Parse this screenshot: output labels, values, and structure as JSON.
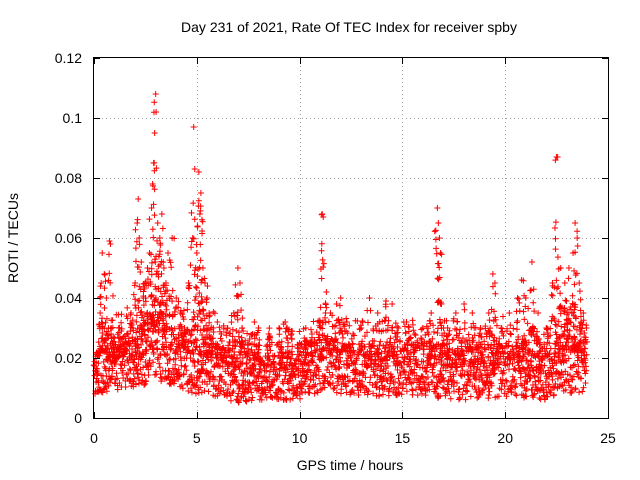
{
  "chart_data": {
    "type": "scatter",
    "title": "Day 231 of 2021, Rate Of TEC Index for receiver spby",
    "xlabel": "GPS time / hours",
    "ylabel": "ROTI / TECUs",
    "xlim": [
      0,
      25
    ],
    "ylim": [
      0,
      0.12
    ],
    "xticks": [
      0,
      5,
      10,
      15,
      20,
      25
    ],
    "xtick_labels": [
      "0",
      "5",
      "10",
      "15",
      "20",
      "25"
    ],
    "yticks": [
      0,
      0.02,
      0.04,
      0.06,
      0.08,
      0.1,
      0.12
    ],
    "ytick_labels": [
      "0",
      "0.02",
      "0.04",
      "0.06",
      "0.08",
      "0.1",
      "0.12"
    ],
    "grid": true,
    "marker": "+",
    "color": "#ff0000",
    "series": [
      {
        "name": "ROTI",
        "points": [
          [
            0.1,
            0.012
          ],
          [
            0.2,
            0.022
          ],
          [
            0.3,
            0.035
          ],
          [
            0.35,
            0.045
          ],
          [
            0.4,
            0.055
          ],
          [
            0.5,
            0.048
          ],
          [
            0.6,
            0.04
          ],
          [
            0.7,
            0.03
          ],
          [
            0.75,
            0.059
          ],
          [
            0.8,
            0.058
          ],
          [
            0.9,
            0.025
          ],
          [
            1.0,
            0.018
          ],
          [
            1.2,
            0.03
          ],
          [
            1.4,
            0.022
          ],
          [
            1.6,
            0.028
          ],
          [
            1.8,
            0.035
          ],
          [
            2.0,
            0.045
          ],
          [
            2.1,
            0.065
          ],
          [
            2.15,
            0.073
          ],
          [
            2.2,
            0.06
          ],
          [
            2.3,
            0.052
          ],
          [
            2.4,
            0.04
          ],
          [
            2.5,
            0.045
          ],
          [
            2.6,
            0.05
          ],
          [
            2.7,
            0.055
          ],
          [
            2.8,
            0.07
          ],
          [
            2.85,
            0.078
          ],
          [
            2.9,
            0.085
          ],
          [
            2.95,
            0.095
          ],
          [
            3.0,
            0.108
          ],
          [
            3.02,
            0.102
          ],
          [
            3.1,
            0.065
          ],
          [
            3.2,
            0.06
          ],
          [
            3.3,
            0.068
          ],
          [
            3.4,
            0.05
          ],
          [
            3.5,
            0.045
          ],
          [
            3.6,
            0.055
          ],
          [
            3.8,
            0.06
          ],
          [
            4.0,
            0.04
          ],
          [
            4.2,
            0.035
          ],
          [
            4.4,
            0.03
          ],
          [
            4.6,
            0.045
          ],
          [
            4.8,
            0.06
          ],
          [
            4.85,
            0.097
          ],
          [
            4.9,
            0.083
          ],
          [
            5.0,
            0.055
          ],
          [
            5.1,
            0.082
          ],
          [
            5.15,
            0.068
          ],
          [
            5.2,
            0.075
          ],
          [
            5.3,
            0.05
          ],
          [
            5.4,
            0.045
          ],
          [
            5.5,
            0.04
          ],
          [
            5.6,
            0.035
          ],
          [
            5.8,
            0.03
          ],
          [
            6.0,
            0.032
          ],
          [
            6.2,
            0.028
          ],
          [
            6.5,
            0.03
          ],
          [
            6.8,
            0.035
          ],
          [
            7.0,
            0.05
          ],
          [
            7.1,
            0.045
          ],
          [
            7.2,
            0.03
          ],
          [
            7.5,
            0.025
          ],
          [
            7.8,
            0.032
          ],
          [
            8.0,
            0.03
          ],
          [
            8.5,
            0.028
          ],
          [
            9.0,
            0.03
          ],
          [
            9.3,
            0.032
          ],
          [
            9.6,
            0.028
          ],
          [
            10.0,
            0.025
          ],
          [
            10.3,
            0.03
          ],
          [
            10.6,
            0.028
          ],
          [
            11.0,
            0.032
          ],
          [
            11.1,
            0.068
          ],
          [
            11.15,
            0.067
          ],
          [
            11.3,
            0.042
          ],
          [
            11.5,
            0.035
          ],
          [
            11.8,
            0.038
          ],
          [
            12.0,
            0.04
          ],
          [
            12.3,
            0.032
          ],
          [
            12.6,
            0.028
          ],
          [
            13.0,
            0.03
          ],
          [
            13.4,
            0.04
          ],
          [
            13.8,
            0.035
          ],
          [
            14.2,
            0.039
          ],
          [
            14.5,
            0.038
          ],
          [
            14.8,
            0.03
          ],
          [
            15.2,
            0.032
          ],
          [
            15.6,
            0.028
          ],
          [
            16.0,
            0.03
          ],
          [
            16.4,
            0.035
          ],
          [
            16.7,
            0.07
          ],
          [
            16.75,
            0.065
          ],
          [
            16.8,
            0.06
          ],
          [
            16.85,
            0.055
          ],
          [
            16.9,
            0.038
          ],
          [
            17.2,
            0.03
          ],
          [
            17.6,
            0.035
          ],
          [
            18.0,
            0.038
          ],
          [
            18.4,
            0.035
          ],
          [
            18.8,
            0.03
          ],
          [
            19.2,
            0.035
          ],
          [
            19.4,
            0.048
          ],
          [
            19.5,
            0.045
          ],
          [
            19.8,
            0.03
          ],
          [
            20.2,
            0.035
          ],
          [
            20.6,
            0.04
          ],
          [
            20.8,
            0.046
          ],
          [
            21.0,
            0.04
          ],
          [
            21.3,
            0.052
          ],
          [
            21.6,
            0.035
          ],
          [
            22.0,
            0.03
          ],
          [
            22.3,
            0.045
          ],
          [
            22.5,
            0.087
          ],
          [
            22.55,
            0.087
          ],
          [
            22.7,
            0.05
          ],
          [
            22.9,
            0.045
          ],
          [
            23.1,
            0.05
          ],
          [
            23.3,
            0.055
          ],
          [
            23.4,
            0.065
          ],
          [
            23.5,
            0.06
          ],
          [
            23.6,
            0.045
          ],
          [
            23.8,
            0.035
          ],
          [
            23.95,
            0.03
          ]
        ],
        "baseline_band": [
          [
            0,
            0.008,
            0.022
          ],
          [
            2,
            0.01,
            0.03
          ],
          [
            3,
            0.012,
            0.04
          ],
          [
            4,
            0.01,
            0.028
          ],
          [
            5,
            0.008,
            0.03
          ],
          [
            6,
            0.007,
            0.025
          ],
          [
            7,
            0.005,
            0.022
          ],
          [
            8,
            0.006,
            0.022
          ],
          [
            10,
            0.006,
            0.022
          ],
          [
            11,
            0.008,
            0.028
          ],
          [
            12,
            0.008,
            0.026
          ],
          [
            14,
            0.007,
            0.024
          ],
          [
            16,
            0.007,
            0.025
          ],
          [
            18,
            0.006,
            0.024
          ],
          [
            20,
            0.007,
            0.025
          ],
          [
            22,
            0.006,
            0.022
          ],
          [
            23,
            0.008,
            0.03
          ],
          [
            24,
            0.008,
            0.025
          ]
        ]
      }
    ]
  }
}
